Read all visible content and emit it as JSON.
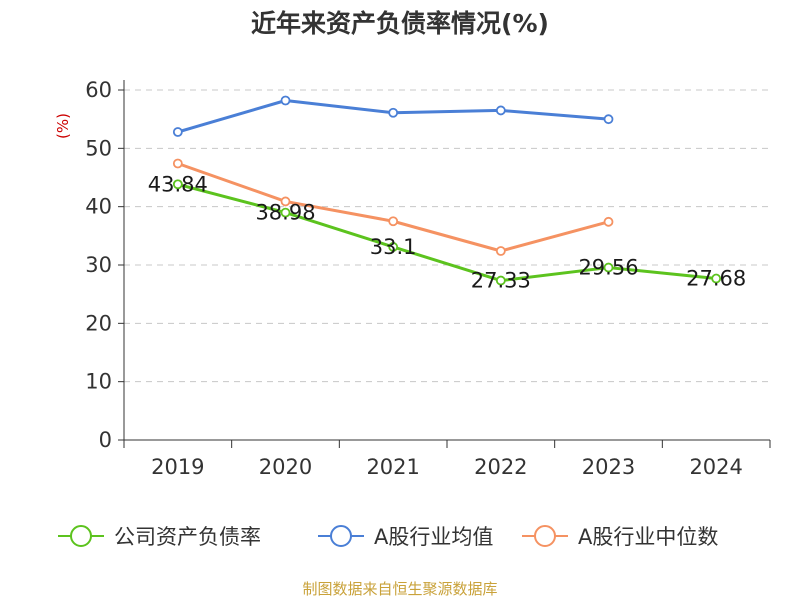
{
  "page": {
    "title": "近年来资产负债率情况(%)",
    "source_note": "制图数据来自恒生聚源数据库"
  },
  "chart_data": {
    "type": "line",
    "title": "近年来资产负债率情况(%)",
    "ylabel": "(%)",
    "xlabel": "",
    "categories": [
      "2019",
      "2020",
      "2021",
      "2022",
      "2023",
      "2024"
    ],
    "ylim": [
      0,
      60
    ],
    "yticks": [
      0,
      10,
      20,
      30,
      40,
      50,
      60
    ],
    "grid": true,
    "legend_position": "bottom",
    "series": [
      {
        "name": "公司资产负债率",
        "color": "#5cc31e",
        "values": [
          43.84,
          38.98,
          33.1,
          27.33,
          29.56,
          27.68
        ],
        "labels": [
          "43.84",
          "38.98",
          "33.1",
          "27.33",
          "29.56",
          "27.68"
        ]
      },
      {
        "name": "A股行业均值",
        "color": "#4a7fd6",
        "values": [
          52.8,
          58.2,
          56.1,
          56.5,
          55.0,
          null
        ]
      },
      {
        "name": "A股行业中位数",
        "color": "#f59262",
        "values": [
          47.4,
          40.9,
          37.5,
          32.4,
          37.4,
          null
        ]
      }
    ]
  }
}
